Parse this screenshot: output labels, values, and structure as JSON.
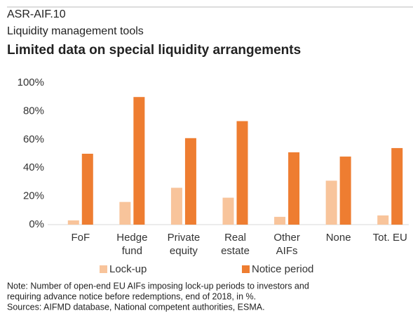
{
  "chart_data": {
    "type": "bar",
    "code": "ASR-AIF.10",
    "subtitle": "Liquidity management tools",
    "title": "Limited data on special liquidity arrangements",
    "categories": [
      [
        "FoF"
      ],
      [
        "Hedge",
        "fund"
      ],
      [
        "Private",
        "equity"
      ],
      [
        "Real",
        "estate"
      ],
      [
        "Other",
        "AIFs"
      ],
      [
        "None"
      ],
      [
        "Tot. EU"
      ]
    ],
    "series": [
      {
        "name": "Lock-up",
        "color": "#f8c49b",
        "values": [
          3,
          16,
          26,
          19,
          5.5,
          31,
          6.5
        ]
      },
      {
        "name": "Notice period",
        "color": "#ee7d31",
        "values": [
          50,
          90,
          61,
          73,
          51,
          48,
          54
        ]
      }
    ],
    "ylim": [
      0,
      100
    ],
    "yticks": [
      {
        "value": 0,
        "label": "0%"
      },
      {
        "value": 20,
        "label": "20%"
      },
      {
        "value": 40,
        "label": "40%"
      },
      {
        "value": 60,
        "label": "60%"
      },
      {
        "value": 80,
        "label": "80%"
      },
      {
        "value": 100,
        "label": "100%"
      }
    ],
    "grid": false,
    "legend": "bottom",
    "notes": [
      "Note: Number of open-end EU AIFs imposing lock-up periods to investors and",
      "requiring advance notice before redemptions, end of 2018, in %.",
      "Sources: AIFMD database, National competent authorities, ESMA."
    ]
  }
}
